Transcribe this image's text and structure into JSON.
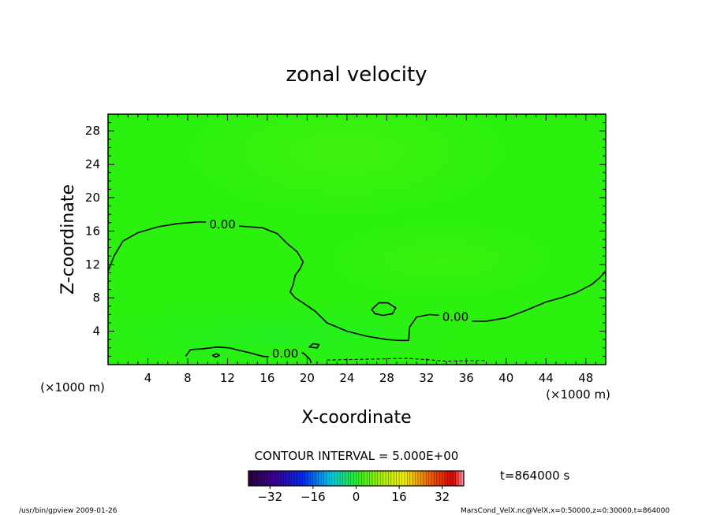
{
  "chart_data": {
    "type": "heatmap",
    "title": "zonal velocity",
    "xlabel": "X-coordinate",
    "ylabel": "Z-coordinate",
    "x_unit_label": "(×1000 m)",
    "y_unit_label": "(×1000 m)",
    "xlim": [
      0,
      50
    ],
    "ylim": [
      0,
      30
    ],
    "x_ticks": [
      4,
      8,
      12,
      16,
      20,
      24,
      28,
      32,
      36,
      40,
      44,
      48
    ],
    "y_ticks": [
      4,
      8,
      12,
      16,
      20,
      24,
      28
    ],
    "field_color": "#2bf10e",
    "contour_interval_text": "CONTOUR INTERVAL = 5.000E+00",
    "contour_level_label": "0.00",
    "contours": [
      {
        "level": 0,
        "style": "solid",
        "points": [
          [
            0,
            11.2
          ],
          [
            0.6,
            13
          ],
          [
            1.5,
            14.8
          ],
          [
            3,
            15.8
          ],
          [
            5,
            16.5
          ],
          [
            7,
            16.9
          ],
          [
            9.2,
            17.1
          ],
          [
            11,
            17.0
          ],
          [
            13,
            16.6
          ],
          [
            15.5,
            16.4
          ],
          [
            17,
            15.7
          ],
          [
            18,
            14.5
          ],
          [
            19,
            13.5
          ],
          [
            19.6,
            12.3
          ],
          [
            19.3,
            11.5
          ],
          [
            18.8,
            10.7
          ],
          [
            18.6,
            9.6
          ],
          [
            18.3,
            8.7
          ],
          [
            18.8,
            8.0
          ],
          [
            19.7,
            7.3
          ],
          [
            20.8,
            6.4
          ],
          [
            22,
            5.0
          ],
          [
            24,
            4.0
          ],
          [
            26,
            3.4
          ],
          [
            28,
            3.0
          ],
          [
            29.3,
            2.9
          ],
          [
            30.2,
            2.9
          ],
          [
            30.3,
            4.5
          ],
          [
            31.0,
            5.7
          ],
          [
            32.3,
            6.0
          ],
          [
            33.5,
            5.9
          ]
        ]
      },
      {
        "level": 0,
        "style": "solid",
        "points": [
          [
            36.2,
            5.2
          ],
          [
            38,
            5.2
          ],
          [
            40,
            5.6
          ],
          [
            42,
            6.5
          ],
          [
            44,
            7.5
          ],
          [
            45.5,
            8.0
          ],
          [
            47,
            8.6
          ],
          [
            48.6,
            9.6
          ],
          [
            49.3,
            10.3
          ],
          [
            50,
            11.2
          ]
        ]
      },
      {
        "level": 0,
        "style": "solid",
        "points": [
          [
            7.8,
            1.0
          ],
          [
            8.3,
            1.8
          ],
          [
            9.5,
            1.9
          ],
          [
            11,
            2.1
          ],
          [
            12.2,
            2.0
          ],
          [
            13.2,
            1.7
          ],
          [
            14.3,
            1.4
          ],
          [
            15.5,
            1.0
          ],
          [
            16.5,
            0.9
          ],
          [
            17.8,
            1.1
          ],
          [
            19.6,
            1.4
          ],
          [
            20.3,
            0.6
          ],
          [
            20.4,
            0.2
          ]
        ]
      },
      {
        "level": 0,
        "style": "solid",
        "closed": true,
        "points": [
          [
            26.5,
            6.6
          ],
          [
            27.2,
            7.4
          ],
          [
            28.1,
            7.4
          ],
          [
            28.9,
            6.8
          ],
          [
            28.6,
            6.1
          ],
          [
            27.6,
            5.9
          ],
          [
            26.8,
            6.1
          ]
        ]
      },
      {
        "level": 0,
        "style": "solid",
        "closed": true,
        "points": [
          [
            20.2,
            2.1
          ],
          [
            20.6,
            2.5
          ],
          [
            21.2,
            2.4
          ],
          [
            21.0,
            2.0
          ]
        ]
      },
      {
        "level": 0,
        "style": "solid",
        "closed": true,
        "points": [
          [
            10.5,
            1.1
          ],
          [
            10.9,
            1.3
          ],
          [
            11.2,
            1.1
          ],
          [
            10.8,
            0.9
          ]
        ]
      },
      {
        "level": -5,
        "style": "dashed",
        "points": [
          [
            22.0,
            0.55
          ],
          [
            24,
            0.6
          ],
          [
            26,
            0.65
          ],
          [
            28,
            0.7
          ],
          [
            30,
            0.75
          ],
          [
            32,
            0.6
          ],
          [
            34,
            0.4
          ],
          [
            36,
            0.45
          ],
          [
            38,
            0.5
          ]
        ]
      }
    ],
    "contour_labels": [
      {
        "text": "0.00",
        "x": 11.5,
        "y": 16.8
      },
      {
        "text": "0.00",
        "x": 34.9,
        "y": 5.7
      },
      {
        "text": "0.00",
        "x": 17.8,
        "y": 1.3
      }
    ],
    "colorbar": {
      "range": [
        -40,
        40
      ],
      "ticks": [
        -32,
        -16,
        0,
        16,
        32
      ],
      "tick_labels": [
        "−32",
        "−16",
        "0",
        "16",
        "32"
      ]
    },
    "time_label": "t=864000 s",
    "footer_left": "/usr/bin/gpview   2009-01-26",
    "footer_right": "MarsCond_VelX.nc@VelX,x=0:50000,z=0:30000,t=864000"
  }
}
